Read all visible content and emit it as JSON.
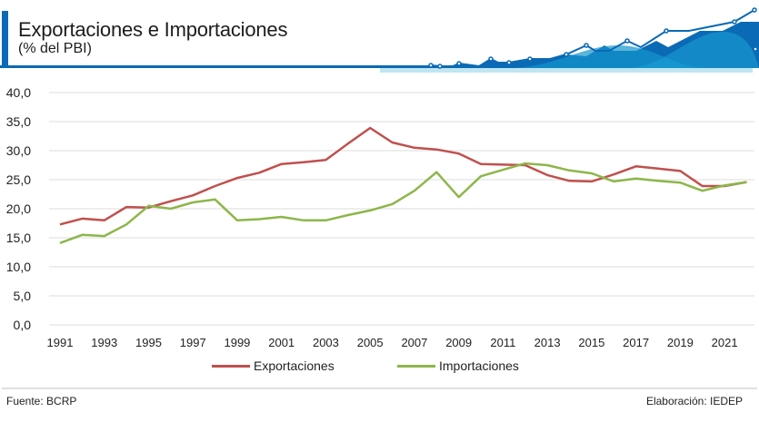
{
  "header": {
    "title": "Exportaciones e Importaciones",
    "subtitle": "(% del PBI)",
    "accent_color": "#0b6ab5"
  },
  "footer": {
    "source": "Fuente:  BCRP",
    "credit": "Elaboración: IEDEP"
  },
  "chart_data": {
    "type": "line",
    "title": "Exportaciones e Importaciones",
    "subtitle": "(% del PBI)",
    "xlabel": "",
    "ylabel": "",
    "ylim": [
      0,
      40
    ],
    "yticks": [
      "0,0",
      "5,0",
      "10,0",
      "15,0",
      "20,0",
      "25,0",
      "30,0",
      "35,0",
      "40,0"
    ],
    "ytick_values": [
      0,
      5,
      10,
      15,
      20,
      25,
      30,
      35,
      40
    ],
    "xtick_labels": [
      "1991",
      "1993",
      "1995",
      "1997",
      "1999",
      "2001",
      "2003",
      "2005",
      "2007",
      "2009",
      "2011",
      "2013",
      "2015",
      "2017",
      "2019",
      "2021"
    ],
    "grid": true,
    "legend_position": "bottom",
    "x": [
      1991,
      1992,
      1993,
      1994,
      1995,
      1996,
      1997,
      1998,
      1999,
      2000,
      2001,
      2002,
      2003,
      2004,
      2005,
      2006,
      2007,
      2008,
      2009,
      2010,
      2011,
      2012,
      2013,
      2014,
      2015,
      2016,
      2017,
      2018,
      2019,
      2020,
      2021,
      2022
    ],
    "series": [
      {
        "name": "Exportaciones",
        "color": "#c0504d",
        "values": [
          17.3,
          18.3,
          18.0,
          20.3,
          20.2,
          21.3,
          22.3,
          23.9,
          25.3,
          26.2,
          27.7,
          28.0,
          28.4,
          31.2,
          33.9,
          31.4,
          30.5,
          30.2,
          29.5,
          27.7,
          27.6,
          27.5,
          25.8,
          24.8,
          24.7,
          25.9,
          27.3,
          26.9,
          26.5,
          23.9,
          23.9,
          24.6
        ]
      },
      {
        "name": "Importaciones",
        "color": "#8db64a",
        "values": [
          14.1,
          15.5,
          15.3,
          17.3,
          20.5,
          20.0,
          21.1,
          21.6,
          18.0,
          18.2,
          18.6,
          18.0,
          18.0,
          18.9,
          19.7,
          20.8,
          23.1,
          26.3,
          22.0,
          25.6,
          26.7,
          27.8,
          27.5,
          26.6,
          26.1,
          24.7,
          25.2,
          24.8,
          24.5,
          23.1,
          24.0,
          24.6
        ]
      }
    ]
  }
}
